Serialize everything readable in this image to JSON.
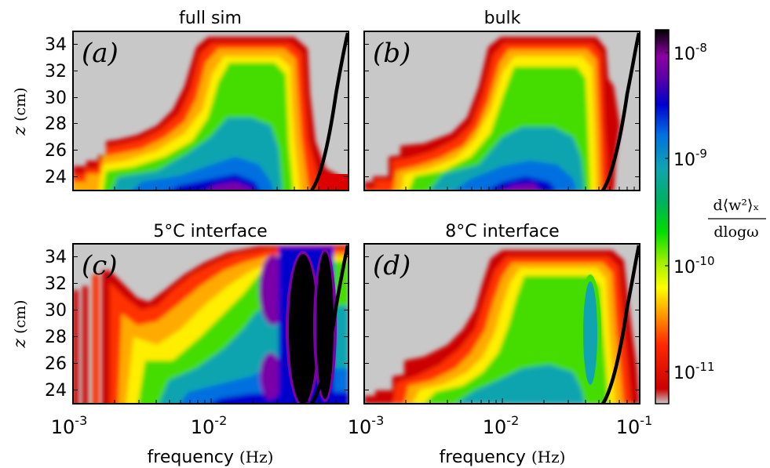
{
  "chart_data": [
    {
      "type": "heatmap",
      "title": "full sim",
      "panel_label": "(a)",
      "ylabel": "z (cm)",
      "xlabel": "",
      "xscale": "log",
      "xlim": [
        0.001,
        0.08
      ],
      "ylim": [
        23,
        35
      ],
      "x_tick_labels": [],
      "y_ticks": [
        24,
        26,
        28,
        30,
        32,
        34
      ],
      "y_tick_labels": [
        "24",
        "26",
        "28",
        "30",
        "32",
        "34"
      ],
      "curve": {
        "color": "#000000"
      }
    },
    {
      "type": "heatmap",
      "title": "bulk",
      "panel_label": "(b)",
      "ylabel": "",
      "xlabel": "",
      "xscale": "log",
      "xlim": [
        0.001,
        0.1
      ],
      "ylim": [
        23,
        35
      ],
      "x_tick_labels": [],
      "y_ticks": [
        24,
        26,
        28,
        30,
        32,
        34
      ],
      "y_tick_labels": [],
      "curve": {
        "color": "#000000"
      }
    },
    {
      "type": "heatmap",
      "title": "5°C interface",
      "panel_label": "(c)",
      "ylabel": "z (cm)",
      "xlabel": "frequency (Hz)",
      "xscale": "log",
      "xlim": [
        0.001,
        0.08
      ],
      "ylim": [
        23,
        35
      ],
      "x_ticks": [
        0.001,
        0.01
      ],
      "x_tick_labels": [
        "10",
        "10"
      ],
      "x_tick_exponents": [
        "-3",
        "-2"
      ],
      "y_ticks": [
        24,
        26,
        28,
        30,
        32,
        34
      ],
      "y_tick_labels": [
        "24",
        "26",
        "28",
        "30",
        "32",
        "34"
      ],
      "curve": {
        "color": "#000000"
      }
    },
    {
      "type": "heatmap",
      "title": "8°C interface",
      "panel_label": "(d)",
      "ylabel": "",
      "xlabel": "frequency (Hz)",
      "xscale": "log",
      "xlim": [
        0.001,
        0.1
      ],
      "ylim": [
        23,
        35
      ],
      "x_ticks": [
        0.001,
        0.01,
        0.1
      ],
      "x_tick_labels": [
        "10",
        "10",
        "10"
      ],
      "x_tick_exponents": [
        "-3",
        "-2",
        "-1"
      ],
      "y_ticks": [
        24,
        26,
        28,
        30,
        32,
        34
      ],
      "y_tick_labels": [],
      "curve": {
        "color": "#000000"
      }
    }
  ],
  "colorbar": {
    "label_numerator": "d⟨w²⟩ₓ",
    "label_denominator": "dlogω",
    "scale": "log",
    "range": [
      5e-12,
      1.5e-08
    ],
    "ticks": [
      1e-11,
      1e-10,
      1e-09,
      1e-08
    ],
    "tick_labels": [
      "10",
      "10",
      "10",
      "10"
    ],
    "tick_exponents": [
      "-11",
      "-10",
      "-9",
      "-8"
    ],
    "colors": [
      "#c8c8c8",
      "#cc0000",
      "#ff2a00",
      "#ffaa00",
      "#ffff00",
      "#9fef00",
      "#00dd00",
      "#00b060",
      "#10a4b0",
      "#0070e0",
      "#0000cc",
      "#5a00a8",
      "#8a00a0",
      "#000000"
    ]
  },
  "colors": {
    "background": "#c8c8c8",
    "curve": "#000000",
    "axis": "#000000"
  }
}
